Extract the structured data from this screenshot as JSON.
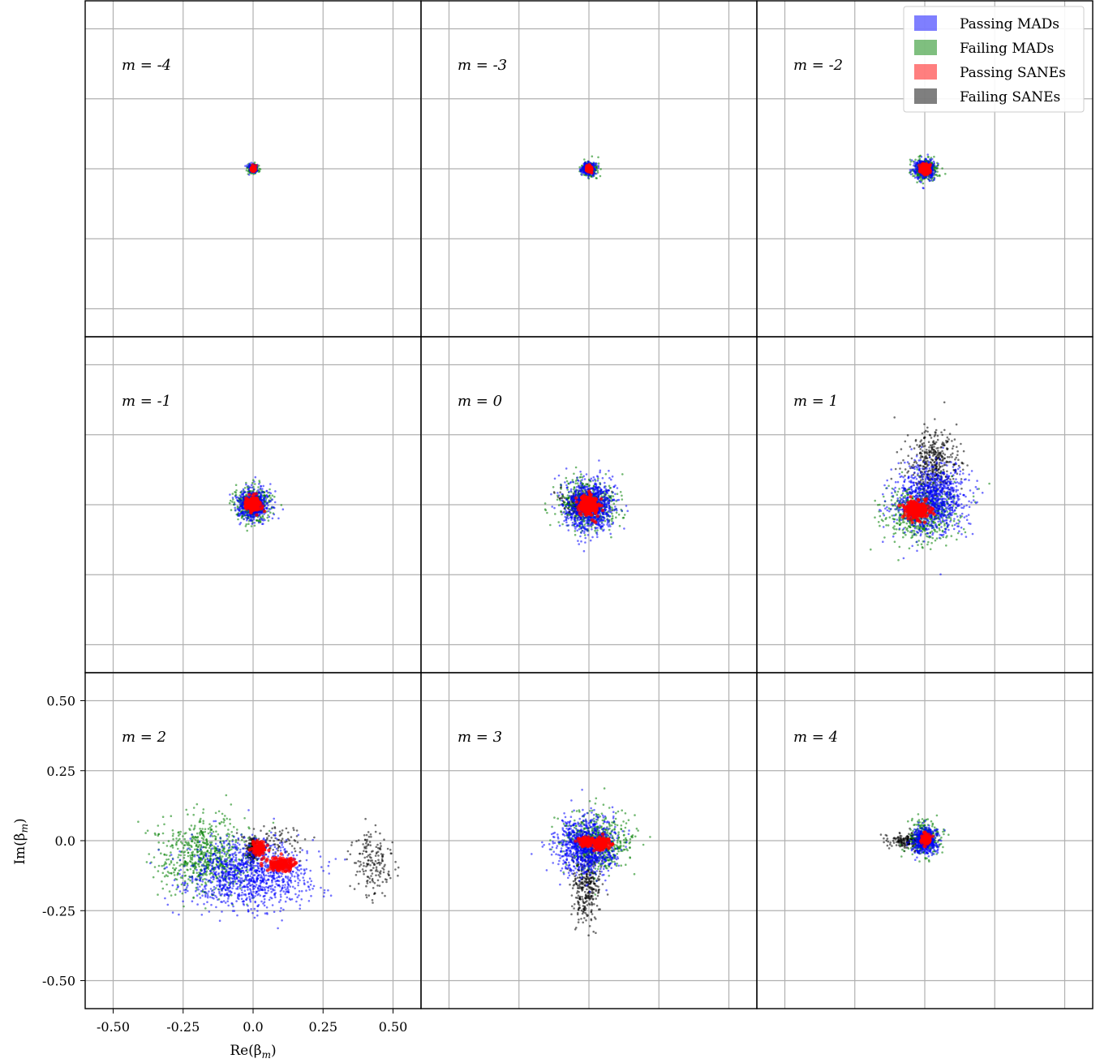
{
  "chart_data": {
    "type": "scatter",
    "layout": "3x3 grid of panels, shared axes",
    "xlabel": "Re(β",
    "xlabel_sub": "m",
    "ylabel": "Im(β",
    "ylabel_sub": "m",
    "xlim": [
      -0.6,
      0.6
    ],
    "ylim": [
      -0.6,
      0.6
    ],
    "x_ticks": [
      -0.5,
      -0.25,
      0.0,
      0.25,
      0.5
    ],
    "y_ticks": [
      -0.5,
      -0.25,
      0.0,
      0.25,
      0.5
    ],
    "x_tick_labels": [
      "-0.50",
      "-0.25",
      "0.0",
      "0.25",
      "0.50"
    ],
    "y_tick_labels": [
      "-0.50",
      "-0.25",
      "0.0",
      "0.25",
      "0.50"
    ],
    "grid": true,
    "legend_position": "top-right",
    "series": [
      {
        "name": "Passing MADs",
        "color": "#0000ff"
      },
      {
        "name": "Failing MADs",
        "color": "#008000"
      },
      {
        "name": "Passing SANEs",
        "color": "#ff0000"
      },
      {
        "name": "Failing SANEs",
        "color": "#000000"
      }
    ],
    "draw_order": [
      "Failing SANEs",
      "Failing MADs",
      "Passing MADs",
      "Passing SANEs"
    ],
    "panels": [
      {
        "label": "m = -4",
        "clusters": [
          {
            "series": "Failing MADs",
            "cx": 0.0,
            "cy": 0.0,
            "sx": 0.01,
            "sy": 0.009,
            "n": 120
          },
          {
            "series": "Passing MADs",
            "cx": 0.0,
            "cy": 0.0,
            "sx": 0.007,
            "sy": 0.007,
            "n": 160
          },
          {
            "series": "Failing SANEs",
            "cx": 0.0,
            "cy": 0.0,
            "sx": 0.004,
            "sy": 0.004,
            "n": 30
          },
          {
            "series": "Passing SANEs",
            "cx": 0.0,
            "cy": 0.0,
            "sx": 0.004,
            "sy": 0.004,
            "n": 90
          }
        ]
      },
      {
        "label": "m = -3",
        "clusters": [
          {
            "series": "Failing MADs",
            "cx": 0.0,
            "cy": 0.0,
            "sx": 0.015,
            "sy": 0.014,
            "n": 200
          },
          {
            "series": "Passing MADs",
            "cx": 0.0,
            "cy": 0.0,
            "sx": 0.011,
            "sy": 0.011,
            "n": 260
          },
          {
            "series": "Failing SANEs",
            "cx": 0.0,
            "cy": 0.0,
            "sx": 0.005,
            "sy": 0.005,
            "n": 40
          },
          {
            "series": "Passing SANEs",
            "cx": 0.0,
            "cy": 0.0,
            "sx": 0.005,
            "sy": 0.005,
            "n": 110
          }
        ]
      },
      {
        "label": "m = -2",
        "clusters": [
          {
            "series": "Failing MADs",
            "cx": 0.0,
            "cy": 0.0,
            "sx": 0.022,
            "sy": 0.02,
            "n": 320
          },
          {
            "series": "Passing MADs",
            "cx": 0.0,
            "cy": 0.0,
            "sx": 0.017,
            "sy": 0.017,
            "n": 420
          },
          {
            "series": "Failing SANEs",
            "cx": 0.0,
            "cy": 0.0,
            "sx": 0.008,
            "sy": 0.008,
            "n": 60
          },
          {
            "series": "Passing SANEs",
            "cx": 0.0,
            "cy": 0.0,
            "sx": 0.008,
            "sy": 0.008,
            "n": 160
          }
        ]
      },
      {
        "label": "m = -1",
        "clusters": [
          {
            "series": "Failing MADs",
            "cx": 0.0,
            "cy": 0.0,
            "sx": 0.033,
            "sy": 0.03,
            "n": 450
          },
          {
            "series": "Passing MADs",
            "cx": 0.0,
            "cy": 0.0,
            "sx": 0.027,
            "sy": 0.026,
            "n": 600
          },
          {
            "series": "Failing SANEs",
            "cx": 0.0,
            "cy": 0.0,
            "sx": 0.012,
            "sy": 0.012,
            "n": 80
          },
          {
            "series": "Passing SANEs",
            "cx": 0.0,
            "cy": 0.0,
            "sx": 0.012,
            "sy": 0.013,
            "n": 220
          }
        ]
      },
      {
        "label": "m = 0",
        "clusters": [
          {
            "series": "Failing MADs",
            "cx": 0.0,
            "cy": 0.0,
            "sx": 0.05,
            "sy": 0.045,
            "n": 550
          },
          {
            "series": "Passing MADs",
            "cx": 0.0,
            "cy": -0.005,
            "sx": 0.045,
            "sy": 0.045,
            "n": 900
          },
          {
            "series": "Failing SANEs",
            "cx": -0.03,
            "cy": 0.01,
            "sx": 0.04,
            "sy": 0.025,
            "n": 220
          },
          {
            "series": "Passing SANEs",
            "cx": 0.0,
            "cy": 0.0,
            "sx": 0.017,
            "sy": 0.017,
            "n": 280
          }
        ]
      },
      {
        "label": "m = 1",
        "clusters": [
          {
            "series": "Failing MADs",
            "cx": -0.02,
            "cy": -0.03,
            "sx": 0.065,
            "sy": 0.05,
            "n": 650
          },
          {
            "series": "Passing MADs",
            "cx": 0.02,
            "cy": 0.02,
            "sx": 0.06,
            "sy": 0.06,
            "n": 1000
          },
          {
            "series": "Failing SANEs",
            "cx": 0.03,
            "cy": 0.15,
            "sx": 0.045,
            "sy": 0.06,
            "n": 420
          },
          {
            "series": "Passing SANEs",
            "cx": -0.03,
            "cy": -0.02,
            "sx": 0.022,
            "sy": 0.015,
            "n": 260
          }
        ]
      },
      {
        "label": "m = 2",
        "clusters": [
          {
            "series": "Failing MADs",
            "cx": -0.17,
            "cy": -0.06,
            "sx": 0.085,
            "sy": 0.065,
            "n": 700
          },
          {
            "series": "Passing MADs",
            "cx": -0.02,
            "cy": -0.12,
            "sx": 0.11,
            "sy": 0.06,
            "n": 1150
          },
          {
            "series": "Failing SANEs",
            "cx": 0.0,
            "cy": -0.03,
            "sx": 0.012,
            "sy": 0.02,
            "n": 180
          },
          {
            "series": "Failing SANEs",
            "cx": 0.07,
            "cy": 0.0,
            "sx": 0.06,
            "sy": 0.03,
            "n": 90
          },
          {
            "series": "Failing SANEs",
            "cx": 0.43,
            "cy": -0.08,
            "sx": 0.035,
            "sy": 0.06,
            "n": 170
          },
          {
            "series": "Passing SANEs",
            "cx": 0.02,
            "cy": -0.025,
            "sx": 0.012,
            "sy": 0.012,
            "n": 110
          },
          {
            "series": "Passing SANEs",
            "cx": 0.1,
            "cy": -0.085,
            "sx": 0.025,
            "sy": 0.012,
            "n": 160
          }
        ]
      },
      {
        "label": "m = 3",
        "clusters": [
          {
            "series": "Failing MADs",
            "cx": 0.03,
            "cy": 0.0,
            "sx": 0.06,
            "sy": 0.05,
            "n": 600
          },
          {
            "series": "Passing MADs",
            "cx": -0.01,
            "cy": -0.02,
            "sx": 0.05,
            "sy": 0.05,
            "n": 950
          },
          {
            "series": "Failing SANEs",
            "cx": -0.01,
            "cy": -0.15,
            "sx": 0.025,
            "sy": 0.075,
            "n": 360
          },
          {
            "series": "Passing SANEs",
            "cx": -0.01,
            "cy": -0.005,
            "sx": 0.013,
            "sy": 0.008,
            "n": 110
          },
          {
            "series": "Passing SANEs",
            "cx": 0.045,
            "cy": -0.01,
            "sx": 0.016,
            "sy": 0.012,
            "n": 130
          }
        ]
      },
      {
        "label": "m = 4",
        "clusters": [
          {
            "series": "Failing MADs",
            "cx": 0.0,
            "cy": 0.01,
            "sx": 0.03,
            "sy": 0.03,
            "n": 320
          },
          {
            "series": "Passing MADs",
            "cx": 0.0,
            "cy": 0.0,
            "sx": 0.024,
            "sy": 0.024,
            "n": 460
          },
          {
            "series": "Failing SANEs",
            "cx": -0.055,
            "cy": 0.0,
            "sx": 0.035,
            "sy": 0.014,
            "n": 210
          },
          {
            "series": "Passing SANEs",
            "cx": 0.005,
            "cy": 0.005,
            "sx": 0.008,
            "sy": 0.009,
            "n": 120
          }
        ]
      }
    ]
  }
}
